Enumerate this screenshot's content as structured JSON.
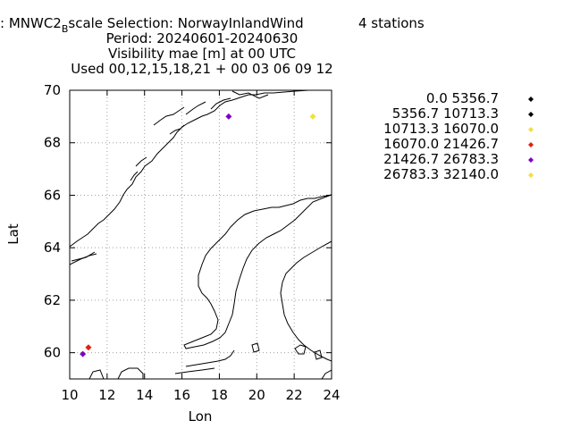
{
  "header": {
    "line1_prefix": ": MNWC2",
    "line1_sub": "B",
    "line1_suffix": "scale   Selection: NorwayInlandWind",
    "stations": "4 stations",
    "line2": "Period: 20240601-20240630",
    "line3": "Visibility mae [m] at  00 UTC",
    "line4": "Used 00,12,15,18,21 + 00 03 06 09 12"
  },
  "chart_data": {
    "type": "scatter",
    "xlabel": "Lon",
    "ylabel": "Lat",
    "xlim": [
      10,
      24
    ],
    "ylim": [
      59,
      70
    ],
    "xticks": [
      10,
      12,
      14,
      16,
      18,
      20,
      22,
      24
    ],
    "yticks": [
      60,
      62,
      64,
      66,
      68,
      70
    ],
    "grid": true,
    "legend_position": "right",
    "series": [
      {
        "name": "0.0 5356.7",
        "color": "#000000",
        "points": []
      },
      {
        "name": "5356.7 10713.3",
        "color": "#000000",
        "points": []
      },
      {
        "name": "10713.3 16070.0",
        "color": "#f0e040",
        "points": []
      },
      {
        "name": "16070.0 21426.7",
        "color": "#e02010",
        "points": [
          {
            "x": 11.0,
            "y": 60.2
          }
        ]
      },
      {
        "name": "21426.7 26783.3",
        "color": "#8000c0",
        "points": [
          {
            "x": 10.7,
            "y": 59.95
          },
          {
            "x": 18.5,
            "y": 69.0
          }
        ]
      },
      {
        "name": "26783.3 32140.0",
        "color": "#f0e040",
        "points": [
          {
            "x": 23.0,
            "y": 69.0
          }
        ]
      }
    ]
  }
}
